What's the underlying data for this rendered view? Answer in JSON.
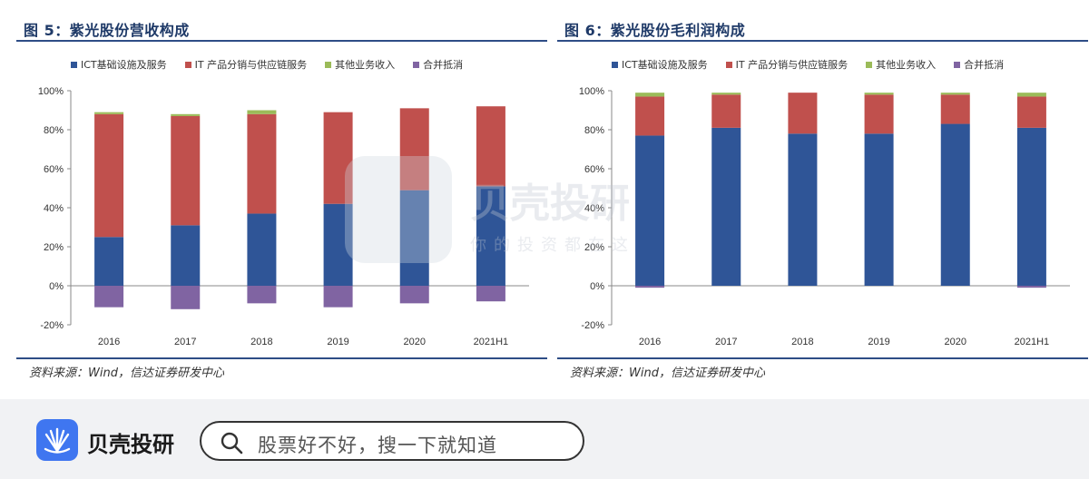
{
  "colors": {
    "ict": "#2f5597",
    "it": "#c0504d",
    "other": "#9bbb59",
    "elim": "#8064a2",
    "title": "#1f3a68"
  },
  "charts": [
    {
      "title": "图 5：紫光股份营收构成",
      "source": "资料来源：Wind，信达证券研发中心",
      "legend": [
        "ICT基础设施及服务",
        "IT 产品分销与供应链服务",
        "其他业务收入",
        "合并抵消"
      ]
    },
    {
      "title": "图 6：紫光股份毛利润构成",
      "source": "资料来源：Wind，信达证券研发中心",
      "legend": [
        "ICT基础设施及服务",
        "IT 产品分销与供应链服务",
        "其他业务收入",
        "合并抵消"
      ]
    }
  ],
  "chart_data": [
    {
      "type": "bar",
      "stacked": true,
      "categories": [
        "2016",
        "2017",
        "2018",
        "2019",
        "2020",
        "2021H1"
      ],
      "series": [
        {
          "name": "ICT基础设施及服务",
          "values": [
            25,
            31,
            37,
            42,
            49,
            51
          ]
        },
        {
          "name": "IT 产品分销与供应链服务",
          "values": [
            63,
            56,
            51,
            47,
            42,
            41
          ]
        },
        {
          "name": "其他业务收入",
          "values": [
            1,
            1,
            2,
            0,
            0,
            0
          ]
        },
        {
          "name": "合并抵消",
          "values": [
            -11,
            -12,
            -9,
            -11,
            -9,
            -8
          ]
        }
      ],
      "ylim": [
        -20,
        100
      ],
      "yticks": [
        "-20%",
        "0%",
        "20%",
        "40%",
        "60%",
        "80%",
        "100%"
      ],
      "title": "图 5：紫光股份营收构成",
      "legend_position": "top"
    },
    {
      "type": "bar",
      "stacked": true,
      "categories": [
        "2016",
        "2017",
        "2018",
        "2019",
        "2020",
        "2021H1"
      ],
      "series": [
        {
          "name": "ICT基础设施及服务",
          "values": [
            77,
            81,
            78,
            78,
            83,
            81
          ]
        },
        {
          "name": "IT 产品分销与供应链服务",
          "values": [
            20,
            17,
            21,
            20,
            15,
            16
          ]
        },
        {
          "name": "其他业务收入",
          "values": [
            2,
            1,
            0,
            1,
            1,
            2
          ]
        },
        {
          "name": "合并抵消",
          "values": [
            -1,
            0,
            0,
            0,
            0,
            -1
          ]
        }
      ],
      "ylim": [
        -20,
        100
      ],
      "yticks": [
        "-20%",
        "0%",
        "20%",
        "40%",
        "60%",
        "80%",
        "100%"
      ],
      "title": "图 6：紫光股份毛利润构成",
      "legend_position": "top"
    }
  ],
  "watermark": {
    "name": "贝壳投研",
    "slogan": "你的投资都在这"
  },
  "footer": {
    "brand": "贝壳投研",
    "search_placeholder": "股票好不好，搜一下就知道"
  }
}
